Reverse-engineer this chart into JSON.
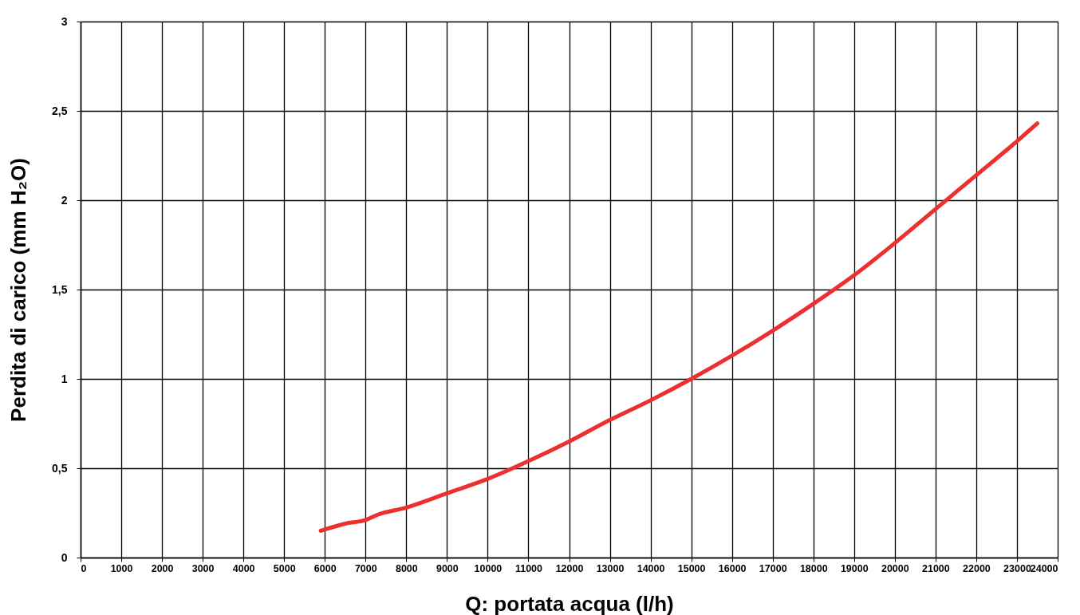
{
  "chart_data": {
    "type": "line",
    "xlabel": "Q: portata acqua (l/h)",
    "ylabel": "Perdita di carico (mm H₂O)",
    "x": [
      5900,
      6500,
      7000,
      7300,
      8000,
      9000,
      10000,
      11000,
      12000,
      13000,
      14000,
      15000,
      16000,
      17000,
      18000,
      19000,
      20000,
      21000,
      22000,
      23000,
      23500
    ],
    "series": [
      {
        "color": "#ec2f2f",
        "values": [
          0.15,
          0.19,
          0.21,
          0.24,
          0.28,
          0.36,
          0.44,
          0.54,
          0.65,
          0.77,
          0.88,
          1.0,
          1.13,
          1.27,
          1.42,
          1.58,
          1.76,
          1.95,
          2.14,
          2.33,
          2.43
        ]
      }
    ],
    "xlim": [
      0,
      24000
    ],
    "xticks": [
      0,
      1000,
      2000,
      3000,
      4000,
      5000,
      6000,
      7000,
      8000,
      9000,
      10000,
      11000,
      12000,
      13000,
      14000,
      15000,
      16000,
      17000,
      18000,
      19000,
      20000,
      21000,
      22000,
      23000,
      24000
    ],
    "ylim": [
      0,
      3
    ],
    "yticks": [
      0,
      {
        "value": 0.5,
        "label": "0,5"
      },
      1,
      {
        "value": 1.5,
        "label": "1,5"
      },
      2,
      {
        "value": 2.5,
        "label": "2,5"
      },
      3
    ],
    "grid": true
  }
}
